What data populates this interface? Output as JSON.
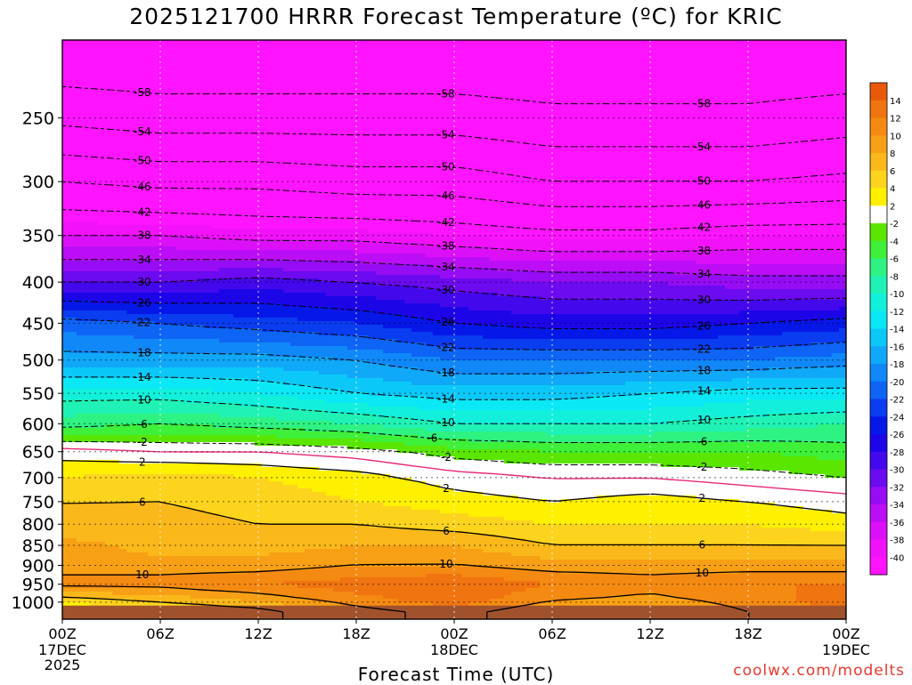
{
  "title": "2025121700 HRRR Forecast Temperature (ºC) for KRIC",
  "xlabel": "Forecast Time (UTC)",
  "credit": "coolwx.com/modelts",
  "chart_data": {
    "type": "heatmap",
    "title": "2025121700 HRRR Forecast Temperature (ºC) for KRIC",
    "xlabel": "Forecast Time (UTC)",
    "ylabel": "",
    "x_range_hours": [
      0,
      48
    ],
    "x_ticks": [
      {
        "hour": 0,
        "label": "00Z",
        "sub": [
          "17DEC",
          "2025"
        ]
      },
      {
        "hour": 6,
        "label": "06Z",
        "sub": []
      },
      {
        "hour": 12,
        "label": "12Z",
        "sub": []
      },
      {
        "hour": 18,
        "label": "18Z",
        "sub": []
      },
      {
        "hour": 24,
        "label": "00Z",
        "sub": [
          "18DEC"
        ]
      },
      {
        "hour": 30,
        "label": "06Z",
        "sub": []
      },
      {
        "hour": 36,
        "label": "12Z",
        "sub": []
      },
      {
        "hour": 42,
        "label": "18Z",
        "sub": []
      },
      {
        "hour": 48,
        "label": "00Z",
        "sub": [
          "19DEC"
        ]
      }
    ],
    "y_axis": "pressure (hPa), log scale, inverted",
    "y_range_hpa": [
      1050,
      200
    ],
    "y_ticks": [
      250,
      300,
      350,
      400,
      450,
      500,
      550,
      600,
      650,
      700,
      750,
      800,
      850,
      900,
      950,
      1000
    ],
    "grid": "dotted, every 6 hours and every 50 hPa",
    "colorbar": {
      "labels": [
        "14",
        "12",
        "10",
        "8",
        "6",
        "4",
        "2",
        "-2",
        "-4",
        "-6",
        "-8",
        "-10",
        "-12",
        "-14",
        "-16",
        "-18",
        "-20",
        "-22",
        "-24",
        "-26",
        "-28",
        "-30",
        "-32",
        "-34",
        "-36",
        "-38",
        "-40"
      ],
      "bands": [
        {
          "min": 14,
          "max": 16,
          "color": "#e85a0a"
        },
        {
          "min": 12,
          "max": 14,
          "color": "#f07410"
        },
        {
          "min": 10,
          "max": 12,
          "color": "#f58a12"
        },
        {
          "min": 8,
          "max": 10,
          "color": "#f7a015"
        },
        {
          "min": 6,
          "max": 8,
          "color": "#fab81a"
        },
        {
          "min": 4,
          "max": 6,
          "color": "#fcd41e"
        },
        {
          "min": 2,
          "max": 4,
          "color": "#fff000"
        },
        {
          "min": -2,
          "max": 2,
          "color": "#ffffff"
        },
        {
          "min": -4,
          "max": -2,
          "color": "#5ae600"
        },
        {
          "min": -6,
          "max": -4,
          "color": "#3ef03a"
        },
        {
          "min": -8,
          "max": -6,
          "color": "#2ef282"
        },
        {
          "min": -10,
          "max": -8,
          "color": "#1ff2b4"
        },
        {
          "min": -12,
          "max": -10,
          "color": "#12f0dc"
        },
        {
          "min": -14,
          "max": -12,
          "color": "#0ae8f5"
        },
        {
          "min": -16,
          "max": -14,
          "color": "#0cc8f8"
        },
        {
          "min": -18,
          "max": -16,
          "color": "#10a8f8"
        },
        {
          "min": -20,
          "max": -18,
          "color": "#1088f8"
        },
        {
          "min": -22,
          "max": -20,
          "color": "#0e64f5"
        },
        {
          "min": -24,
          "max": -22,
          "color": "#0a3cf0"
        },
        {
          "min": -26,
          "max": -24,
          "color": "#0618e8"
        },
        {
          "min": -28,
          "max": -26,
          "color": "#1c06e8"
        },
        {
          "min": -30,
          "max": -28,
          "color": "#4408ec"
        },
        {
          "min": -32,
          "max": -30,
          "color": "#6c0af0"
        },
        {
          "min": -34,
          "max": -32,
          "color": "#960cf4"
        },
        {
          "min": -36,
          "max": -34,
          "color": "#bc0ef6"
        },
        {
          "min": -38,
          "max": -36,
          "color": "#dc10f8"
        },
        {
          "min": -40,
          "max": -38,
          "color": "#f212fa"
        },
        {
          "min": -80,
          "max": -40,
          "color": "#ff14ff"
        }
      ]
    },
    "freezing_line_color": "#e8287a",
    "ground_color": "#a0522d",
    "temperature_profile": {
      "pressure_hpa": [
        200,
        250,
        300,
        350,
        400,
        450,
        500,
        550,
        600,
        650,
        700,
        750,
        800,
        850,
        900,
        950,
        1000,
        1020
      ],
      "times_hours": [
        0,
        6,
        12,
        18,
        24,
        30,
        36,
        42,
        48
      ],
      "values_c": [
        [
          -62,
          -55,
          -46,
          -38,
          -30,
          -21,
          -17,
          -11,
          -7,
          1,
          4,
          6,
          6,
          9,
          9,
          11,
          4,
          2
        ],
        [
          -62,
          -56,
          -47,
          -38,
          -30,
          -22,
          -17,
          -11,
          -6,
          0,
          5,
          6,
          7,
          7,
          9,
          11,
          6,
          4
        ],
        [
          -62,
          -56,
          -47,
          -39,
          -29,
          -23,
          -17,
          -12,
          -7,
          0,
          4,
          5,
          6,
          7,
          9,
          12,
          8,
          5
        ],
        [
          -62,
          -56,
          -48,
          -39,
          -30,
          -24,
          -18,
          -14,
          -8,
          -1,
          3,
          4,
          6,
          8,
          10,
          13,
          11,
          9
        ],
        [
          -62,
          -56,
          -48,
          -40,
          -31,
          -26,
          -20,
          -15,
          -10,
          -3,
          1,
          3,
          5,
          8,
          10,
          14,
          13,
          11
        ],
        [
          -62,
          -57,
          -50,
          -41,
          -32,
          -27,
          -20,
          -15,
          -10,
          -4,
          0,
          2,
          4,
          6,
          9,
          12,
          10,
          8
        ],
        [
          -62,
          -57,
          -50,
          -41,
          -32,
          -27,
          -20,
          -14,
          -10,
          -4,
          0,
          3,
          4,
          6,
          9,
          11,
          9,
          7
        ],
        [
          -62,
          -57,
          -50,
          -40,
          -33,
          -26,
          -20,
          -13,
          -9,
          -4,
          -1,
          2,
          4,
          6,
          9,
          12,
          11,
          10
        ],
        [
          -62,
          -56,
          -49,
          -40,
          -33,
          -25,
          -19,
          -13,
          -8,
          -5,
          -2,
          1,
          3,
          6,
          9,
          12,
          13,
          12
        ]
      ]
    },
    "contour_levels": [
      -58,
      -54,
      -50,
      -46,
      -42,
      -38,
      -34,
      -30,
      -26,
      -22,
      -18,
      -14,
      -10,
      -6,
      -2,
      2,
      6,
      10,
      14
    ]
  }
}
